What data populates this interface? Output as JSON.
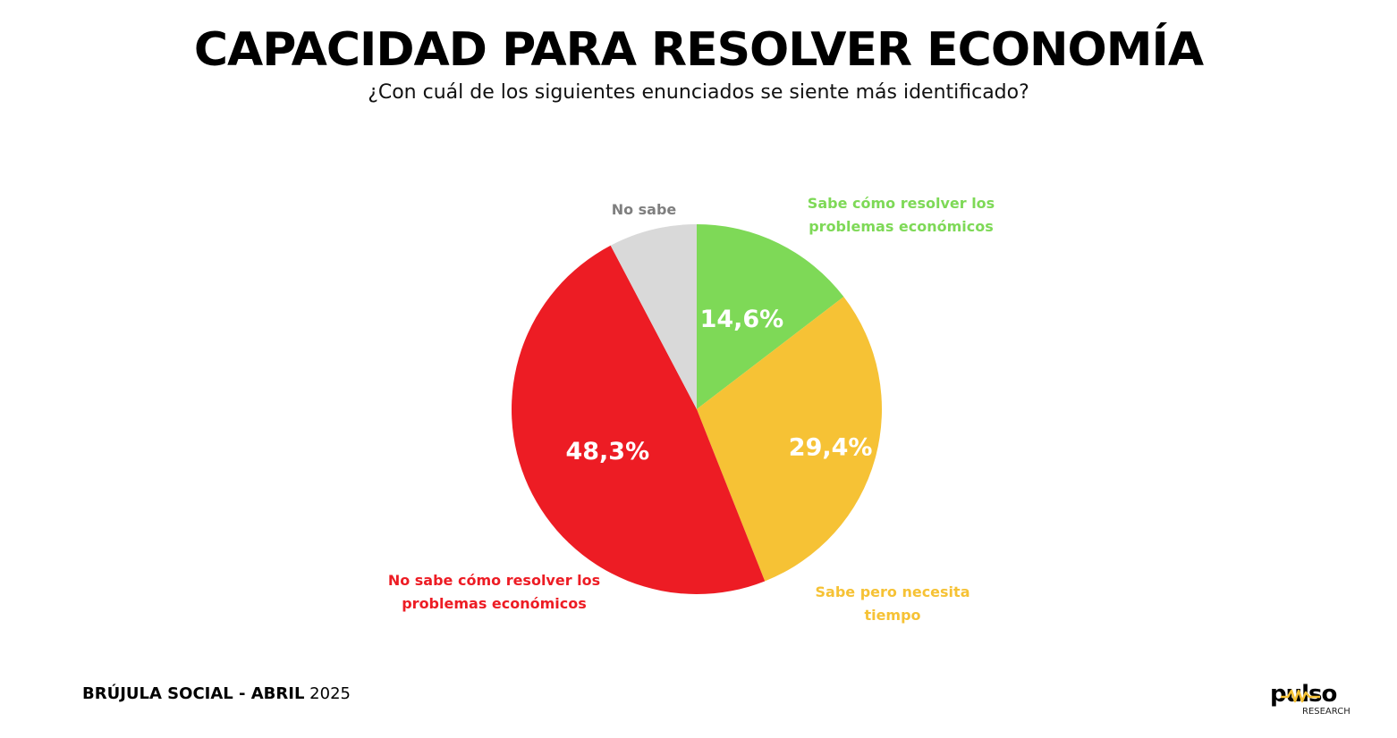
{
  "title": "CAPACIDAD PARA RESOLVER ECONOMÍA",
  "subtitle": "¿Con cuál de los siguientes enunciados se siente más identificado?",
  "chart_data": {
    "type": "pie",
    "title": "CAPACIDAD PARA RESOLVER ECONOMÍA",
    "subtitle": "¿Con cuál de los siguientes enunciados se siente más identificado?",
    "slices": [
      {
        "label_lines": [
          "Sabe cómo resolver los",
          "problemas económicos"
        ],
        "value": 14.6,
        "value_label": "14,6%",
        "color": "#7ED957"
      },
      {
        "label_lines": [
          "Sabe pero necesita",
          "tiempo"
        ],
        "value": 29.4,
        "value_label": "29,4%",
        "color": "#F6C235"
      },
      {
        "label_lines": [
          "No sabe cómo resolver los",
          "problemas económicos"
        ],
        "value": 48.3,
        "value_label": "48,3%",
        "color": "#ED1C24"
      },
      {
        "label_lines": [
          "No sabe"
        ],
        "value": 7.7,
        "value_label": "",
        "color": "#D9D9D9"
      }
    ],
    "start": "12 o'clock",
    "direction": "clockwise"
  },
  "label_colors": [
    "#7ED957",
    "#F6C235",
    "#ED1C24",
    "#7F7F7F"
  ],
  "footer": {
    "bold": "BRÚJULA SOCIAL - ABRIL",
    "regular": " 2025"
  },
  "logo": {
    "word": "pulso",
    "sub": "RESEARCH"
  }
}
